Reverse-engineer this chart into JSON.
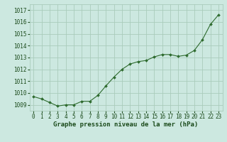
{
  "hours": [
    0,
    1,
    2,
    3,
    4,
    5,
    6,
    7,
    8,
    9,
    10,
    11,
    12,
    13,
    14,
    15,
    16,
    17,
    18,
    19,
    20,
    21,
    22,
    23
  ],
  "pressures": [
    1009.7,
    1009.5,
    1009.2,
    1008.9,
    1009.0,
    1009.0,
    1009.3,
    1009.3,
    1009.8,
    1010.6,
    1011.35,
    1012.0,
    1012.45,
    1012.65,
    1012.75,
    1013.05,
    1013.25,
    1013.25,
    1013.1,
    1013.2,
    1013.6,
    1014.5,
    1015.8,
    1016.6
  ],
  "line_color": "#2d6a2d",
  "marker_color": "#2d6a2d",
  "bg_color": "#cce8e0",
  "grid_color": "#aaccbb",
  "xlabel": "Graphe pression niveau de la mer (hPa)",
  "xlabel_color": "#1a4a1a",
  "ylim": [
    1008.5,
    1017.5
  ],
  "yticks": [
    1009,
    1010,
    1011,
    1012,
    1013,
    1014,
    1015,
    1016,
    1017
  ],
  "xtick_labels": [
    "0",
    "1",
    "2",
    "3",
    "4",
    "5",
    "6",
    "7",
    "8",
    "9",
    "10",
    "11",
    "12",
    "13",
    "14",
    "15",
    "16",
    "17",
    "18",
    "19",
    "20",
    "21",
    "22",
    "23"
  ],
  "title_color": "#1a4a1a",
  "tick_fontsize": 5.5,
  "xlabel_fontsize": 6.5
}
